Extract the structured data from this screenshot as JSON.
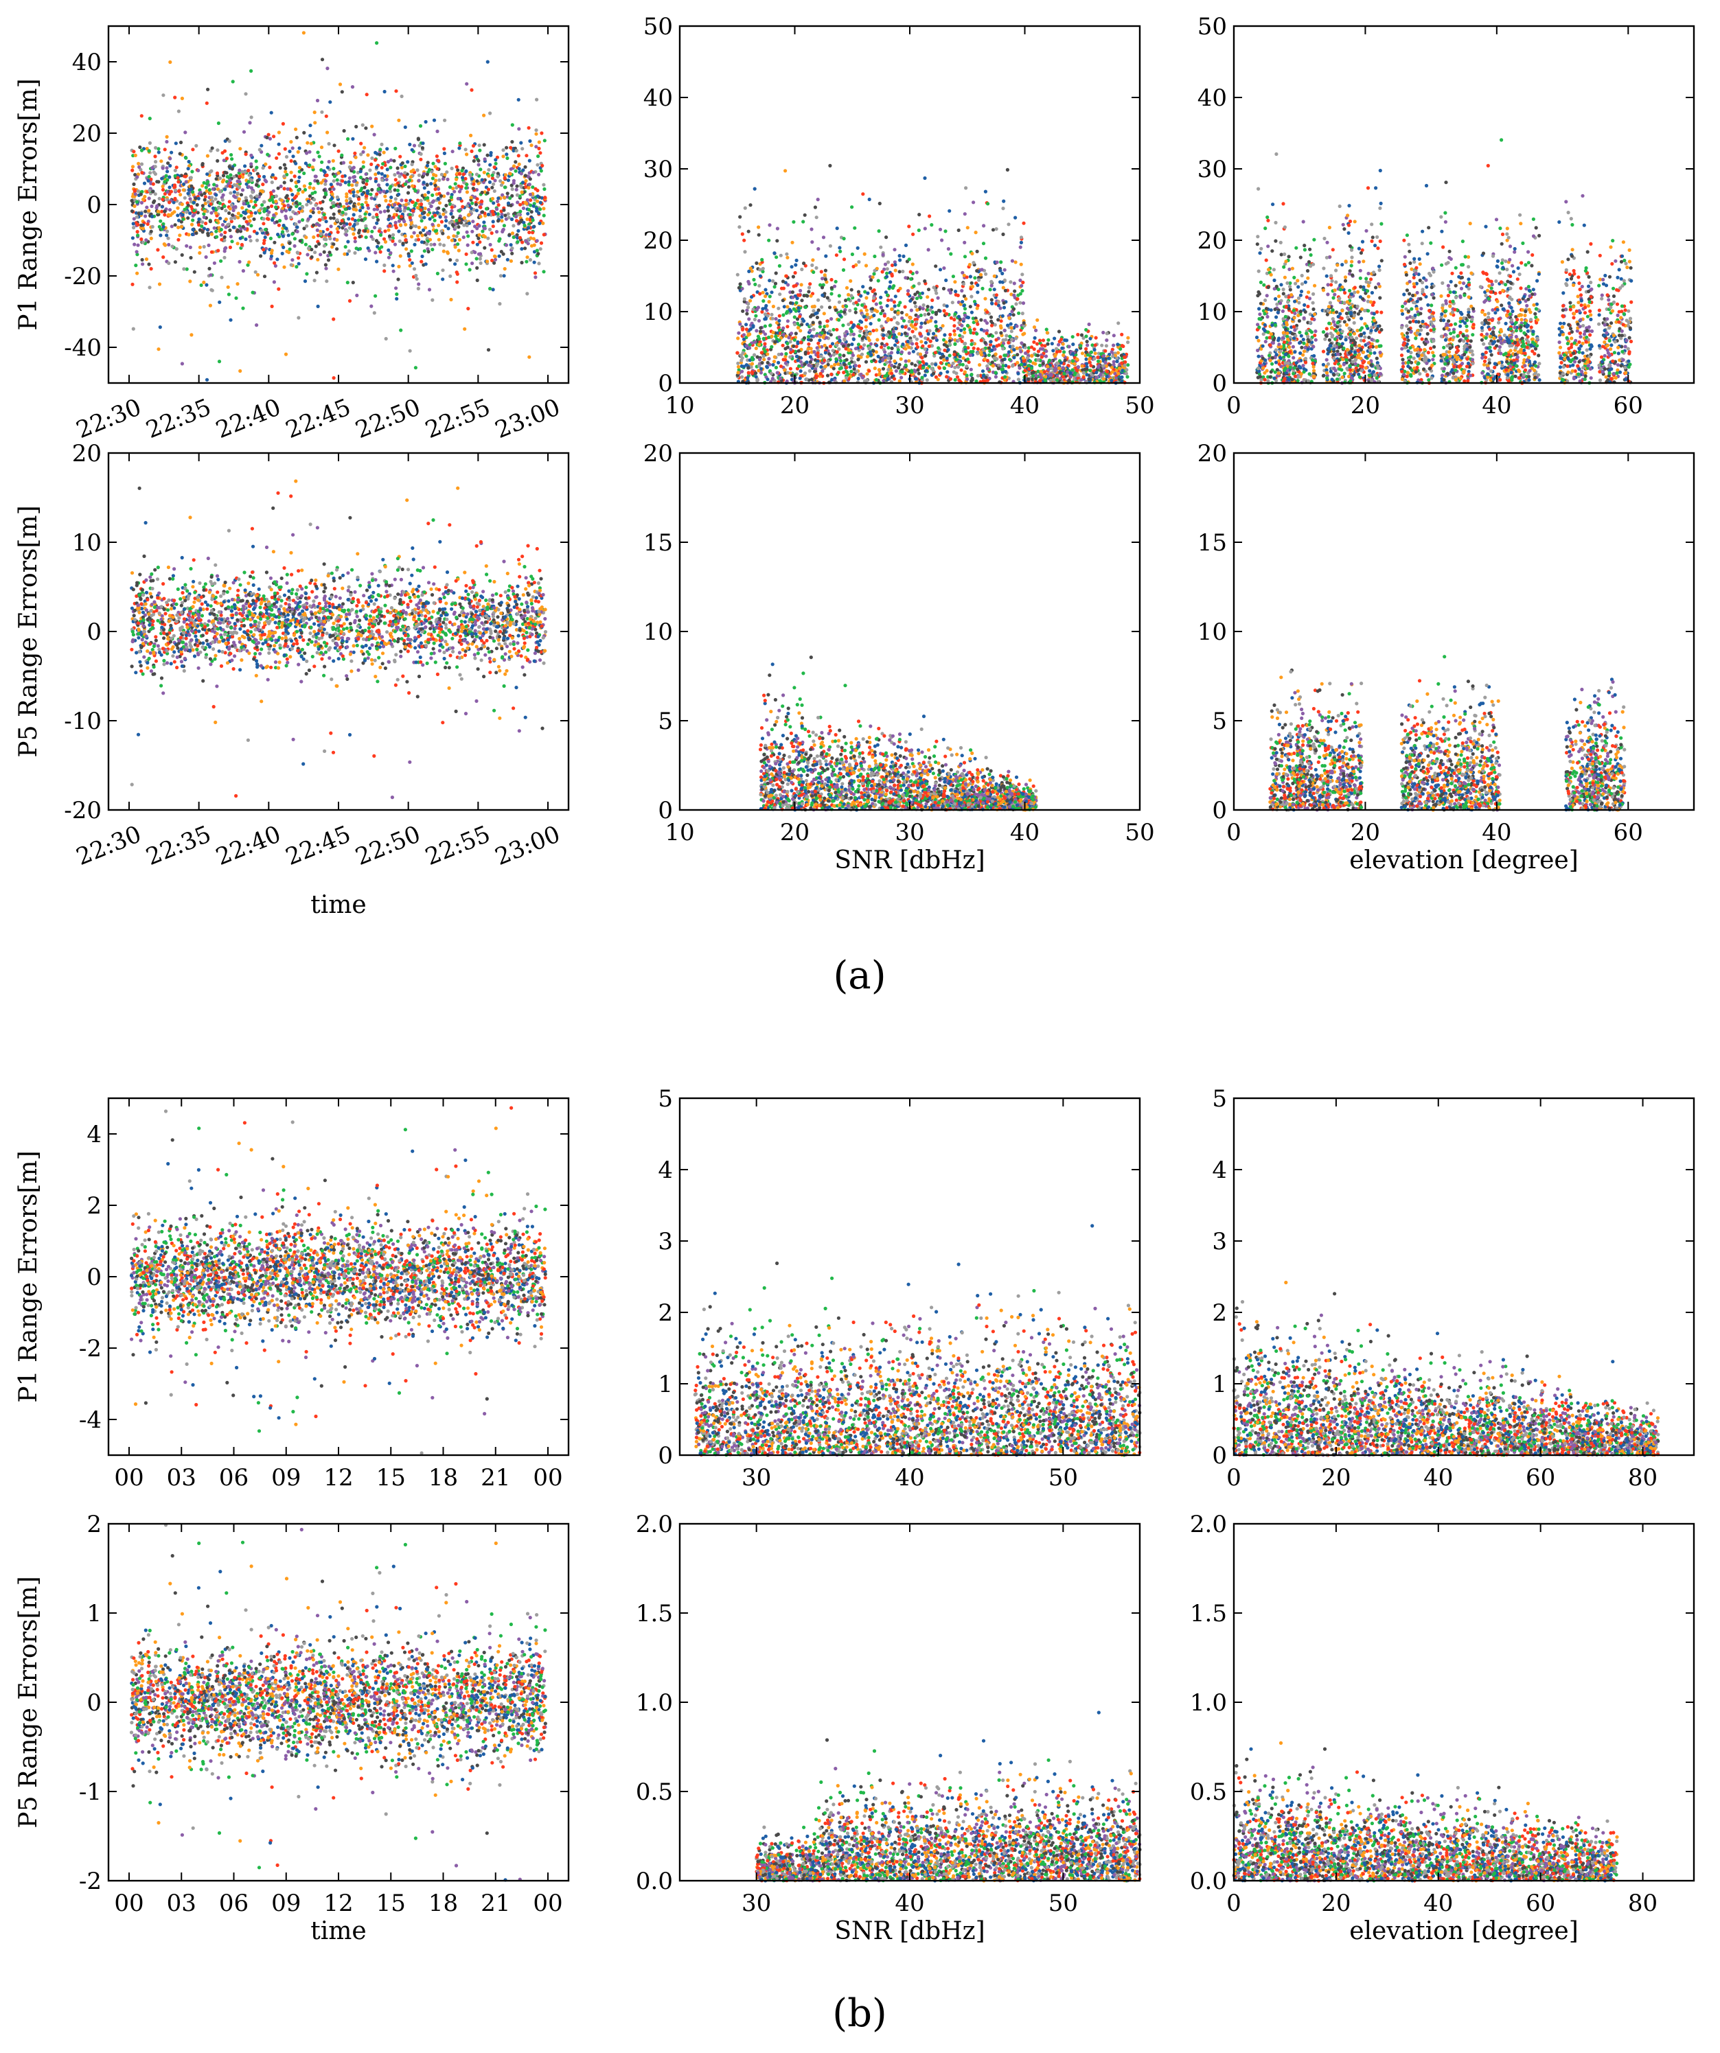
{
  "colors": [
    "#1f5fa6",
    "#ff9c1c",
    "#9e9e9e",
    "#22b84a",
    "#4a4a4a",
    "#ff3b1f",
    "#8b5ea8"
  ],
  "captions": {
    "a": "(a)",
    "b": "(b)"
  },
  "chart_data": [
    {
      "panel": "a-P1-time",
      "type": "scatter",
      "ylabel": "P1 Range Errors[m]",
      "xlabel": "",
      "ylim": [
        -50,
        50
      ],
      "yticks": [
        -40,
        -20,
        0,
        20,
        40
      ],
      "xticks": [
        "22:30",
        "22:35",
        "22:40",
        "22:45",
        "22:50",
        "22:55",
        "23:00"
      ],
      "xlim": [
        0,
        30
      ],
      "xrot": true,
      "series": [
        {
          "cx": 15,
          "cy": 0,
          "sx": 30,
          "sy": 9,
          "n": 420,
          "dist": "time"
        }
      ]
    },
    {
      "panel": "a-P1-snr",
      "type": "scatter",
      "ylabel": "",
      "xlabel": "",
      "ylim": [
        0,
        50
      ],
      "yticks": [
        0,
        10,
        20,
        30,
        40,
        50
      ],
      "xlim": [
        10,
        50
      ],
      "xticks": [
        10,
        20,
        30,
        40,
        50
      ],
      "series": [
        {
          "cx": 29,
          "cy": 8,
          "sx": 12,
          "sy": 10,
          "n": 440,
          "dist": "snr"
        }
      ]
    },
    {
      "panel": "a-P1-elev",
      "type": "scatter",
      "ylabel": "",
      "xlabel": "",
      "ylim": [
        0,
        50
      ],
      "yticks": [
        0,
        10,
        20,
        30,
        40,
        50
      ],
      "xlim": [
        0,
        70
      ],
      "xticks": [
        0,
        20,
        40,
        60
      ],
      "series": [
        {
          "n": 440,
          "dist": "elev"
        }
      ]
    },
    {
      "panel": "a-P5-time",
      "type": "scatter",
      "ylabel": "P5 Range Errors[m]",
      "xlabel": "time",
      "ylim": [
        -20,
        20
      ],
      "yticks": [
        -20,
        -10,
        0,
        10,
        20
      ],
      "xticks": [
        "22:30",
        "22:35",
        "22:40",
        "22:45",
        "22:50",
        "22:55",
        "23:00"
      ],
      "xlim": [
        0,
        30
      ],
      "xrot": true,
      "series": [
        {
          "cx": 15,
          "cy": 1,
          "sx": 30,
          "sy": 2.5,
          "n": 420,
          "dist": "time"
        }
      ]
    },
    {
      "panel": "a-P5-snr",
      "type": "scatter",
      "ylabel": "",
      "xlabel": "SNR [dbHz]",
      "ylim": [
        0,
        20
      ],
      "yticks": [
        0,
        5,
        10,
        15,
        20
      ],
      "xlim": [
        10,
        50
      ],
      "xticks": [
        10,
        20,
        30,
        40,
        50
      ],
      "series": [
        {
          "cx": 27,
          "cy": 2.5,
          "sx": 10,
          "sy": 2.5,
          "n": 380,
          "dist": "snr5"
        }
      ]
    },
    {
      "panel": "a-P5-elev",
      "type": "scatter",
      "ylabel": "",
      "xlabel": "elevation [degree]",
      "ylim": [
        0,
        20
      ],
      "yticks": [
        0,
        5,
        10,
        15,
        20
      ],
      "xlim": [
        0,
        70
      ],
      "xticks": [
        0,
        20,
        40,
        60
      ],
      "series": [
        {
          "n": 380,
          "dist": "elev5"
        }
      ]
    },
    {
      "panel": "b-P1-time",
      "type": "scatter",
      "ylabel": "P1 Range Errors[m]",
      "xlabel": "",
      "ylim": [
        -5,
        5
      ],
      "yticks": [
        -4,
        -2,
        0,
        2,
        4
      ],
      "xticks": [
        "00",
        "03",
        "06",
        "09",
        "12",
        "15",
        "18",
        "21",
        "00"
      ],
      "xlim": [
        0,
        24
      ],
      "series": [
        {
          "cx": 12,
          "cy": 0,
          "sx": 24,
          "sy": 0.7,
          "n": 520,
          "dist": "time"
        }
      ]
    },
    {
      "panel": "b-P1-snr",
      "type": "scatter",
      "ylabel": "",
      "xlabel": "",
      "ylim": [
        0,
        5
      ],
      "yticks": [
        0,
        1,
        2,
        3,
        4,
        5
      ],
      "xlim": [
        25,
        55
      ],
      "xticks": [
        30,
        40,
        50
      ],
      "series": [
        {
          "n": 520,
          "dist": "bsnr"
        }
      ]
    },
    {
      "panel": "b-P1-elev",
      "type": "scatter",
      "ylabel": "",
      "xlabel": "",
      "ylim": [
        0,
        5
      ],
      "yticks": [
        0,
        1,
        2,
        3,
        4,
        5
      ],
      "xlim": [
        0,
        90
      ],
      "xticks": [
        0,
        20,
        40,
        60,
        80
      ],
      "series": [
        {
          "n": 520,
          "dist": "belev"
        }
      ]
    },
    {
      "panel": "b-P5-time",
      "type": "scatter",
      "ylabel": "P5 Range Errors[m]",
      "xlabel": "time",
      "ylim": [
        -2,
        2
      ],
      "yticks": [
        -2,
        -1,
        0,
        1,
        2
      ],
      "xticks": [
        "00",
        "03",
        "06",
        "09",
        "12",
        "15",
        "18",
        "21",
        "00"
      ],
      "xlim": [
        0,
        24
      ],
      "series": [
        {
          "cx": 12,
          "cy": 0,
          "sx": 24,
          "sy": 0.3,
          "n": 520,
          "dist": "time"
        }
      ]
    },
    {
      "panel": "b-P5-snr",
      "type": "scatter",
      "ylabel": "",
      "xlabel": "SNR [dbHz]",
      "ylim": [
        0,
        2
      ],
      "yticks": [
        "0.0",
        "0.5",
        "1.0",
        "1.5",
        "2.0"
      ],
      "xlim": [
        25,
        55
      ],
      "xticks": [
        30,
        40,
        50
      ],
      "series": [
        {
          "n": 480,
          "dist": "bsnr5"
        }
      ]
    },
    {
      "panel": "b-P5-elev",
      "type": "scatter",
      "ylabel": "",
      "xlabel": "elevation [degree]",
      "ylim": [
        0,
        2
      ],
      "yticks": [
        "0.0",
        "0.5",
        "1.0",
        "1.5",
        "2.0"
      ],
      "xlim": [
        0,
        90
      ],
      "xticks": [
        0,
        20,
        40,
        60,
        80
      ],
      "series": [
        {
          "n": 480,
          "dist": "belev5"
        }
      ]
    }
  ]
}
